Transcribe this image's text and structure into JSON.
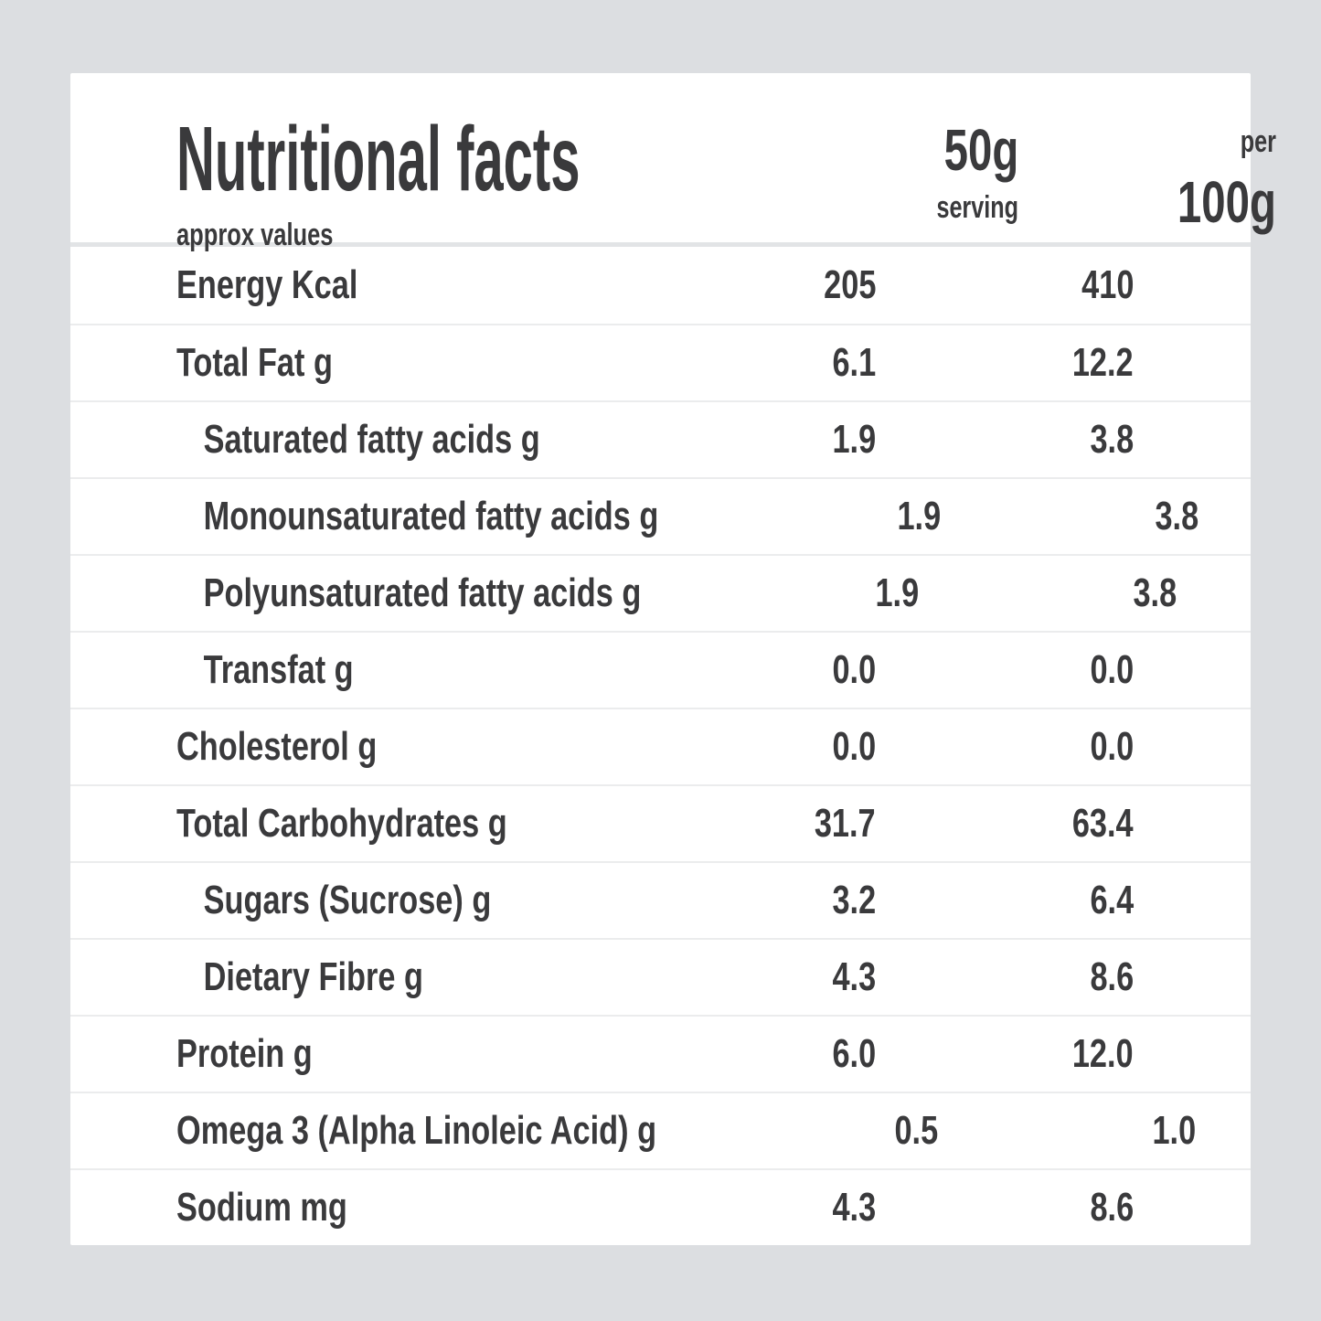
{
  "colors": {
    "background": "#dcdee1",
    "card": "#ffffff",
    "text": "#3a3a3c",
    "row_separator": "#ebeced",
    "header_separator": "#e2e4e6"
  },
  "header": {
    "title": "Nutritional facts",
    "subtitle": "approx values",
    "serving_column": {
      "amount": "50g",
      "label": "serving"
    },
    "per100_column": {
      "prefix": "per",
      "amount": "100g"
    }
  },
  "table": {
    "rows": [
      {
        "label": "Energy Kcal",
        "serving": "205",
        "per100": "410",
        "indent": false
      },
      {
        "label": "Total Fat g",
        "serving": "6.1",
        "per100": "12.2",
        "indent": false
      },
      {
        "label": "Saturated fatty acids g",
        "serving": "1.9",
        "per100": "3.8",
        "indent": true
      },
      {
        "label": "Monounsaturated fatty acids g",
        "serving": "1.9",
        "per100": "3.8",
        "indent": true
      },
      {
        "label": "Polyunsaturated fatty acids g",
        "serving": "1.9",
        "per100": "3.8",
        "indent": true
      },
      {
        "label": "Transfat g",
        "serving": "0.0",
        "per100": "0.0",
        "indent": true
      },
      {
        "label": "Cholesterol g",
        "serving": "0.0",
        "per100": "0.0",
        "indent": false
      },
      {
        "label": "Total Carbohydrates g",
        "serving": "31.7",
        "per100": "63.4",
        "indent": false
      },
      {
        "label": "Sugars (Sucrose) g",
        "serving": "3.2",
        "per100": "6.4",
        "indent": true
      },
      {
        "label": "Dietary Fibre g",
        "serving": "4.3",
        "per100": "8.6",
        "indent": true
      },
      {
        "label": "Protein g",
        "serving": "6.0",
        "per100": "12.0",
        "indent": false
      },
      {
        "label": "Omega 3 (Alpha Linoleic Acid) g",
        "serving": "0.5",
        "per100": "1.0",
        "indent": false
      },
      {
        "label": "Sodium mg",
        "serving": "4.3",
        "per100": "8.6",
        "indent": false
      }
    ]
  }
}
